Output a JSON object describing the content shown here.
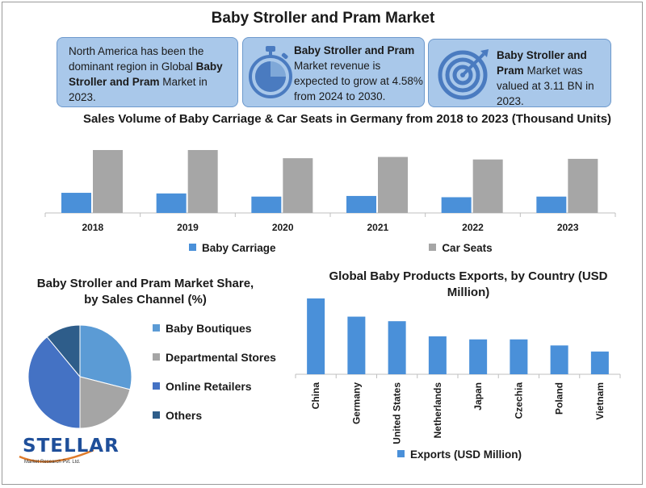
{
  "title": "Baby Stroller and Pram Market",
  "cards": [
    {
      "parts": [
        {
          "text": "North America has been the dominant region in Global ",
          "bold": false
        },
        {
          "text": "Baby Stroller and Pram",
          "bold": true
        },
        {
          "text": " Market in 2023.",
          "bold": false
        }
      ],
      "icon": ""
    },
    {
      "parts": [
        {
          "text": "Baby Stroller and Pram",
          "bold": true
        },
        {
          "text": " Market revenue is expected to grow at 4.58% from 2024 to 2030.",
          "bold": false
        }
      ],
      "icon": "stopwatch-icon"
    },
    {
      "parts": [
        {
          "text": "Baby Stroller and Pram",
          "bold": true
        },
        {
          "text": " Market was valued at 3.11 BN in 2023.",
          "bold": false
        }
      ],
      "icon": "target-icon"
    }
  ],
  "logo": {
    "text": "STELLAR",
    "subtext": "Market Research Pvt. Ltd."
  },
  "colors": {
    "card_bg": "#a9c8ea",
    "blue": "#4a90d9",
    "gray": "#a6a6a6",
    "dark_blue": "#4472c4",
    "navy": "#2e5d8a"
  },
  "chart_data": [
    {
      "type": "bar",
      "title": "Sales Volume of Baby Carriage & Car Seats in Germany from 2018 to 2023 (Thousand Units)",
      "categories": [
        "2018",
        "2019",
        "2020",
        "2021",
        "2022",
        "2023"
      ],
      "series": [
        {
          "name": "Baby Carriage",
          "values": [
            32,
            31,
            26,
            27,
            25,
            26
          ],
          "color": "#4a90d9"
        },
        {
          "name": "Car Seats",
          "values": [
            100,
            100,
            87,
            89,
            85,
            86
          ],
          "color": "#a6a6a6"
        }
      ],
      "ylim": [
        0,
        100
      ],
      "grid": false,
      "legend": "bottom"
    },
    {
      "type": "pie",
      "title": "Baby Stroller and Pram Market Share, by Sales Channel (%)",
      "labels": [
        "Baby Boutiques",
        "Departmental Stores",
        "Online Retailers",
        "Others"
      ],
      "values": [
        29,
        21,
        39,
        11
      ],
      "colors": [
        "#5b9bd5",
        "#a5a5a5",
        "#4472c4",
        "#2e5d8a"
      ],
      "legend": "right"
    },
    {
      "type": "bar",
      "title": "Global Baby Products Exports, by Country (USD Million)",
      "categories": [
        "China",
        "Germany",
        "United States",
        "Netherlands",
        "Japan",
        "Czechia",
        "Poland",
        "Vietnam"
      ],
      "series": [
        {
          "name": "Exports (USD Million)",
          "values": [
            100,
            76,
            70,
            50,
            46,
            46,
            38,
            30
          ],
          "color": "#4a90d9"
        }
      ],
      "ylim": [
        0,
        100
      ],
      "grid": false,
      "legend": "bottom"
    }
  ]
}
